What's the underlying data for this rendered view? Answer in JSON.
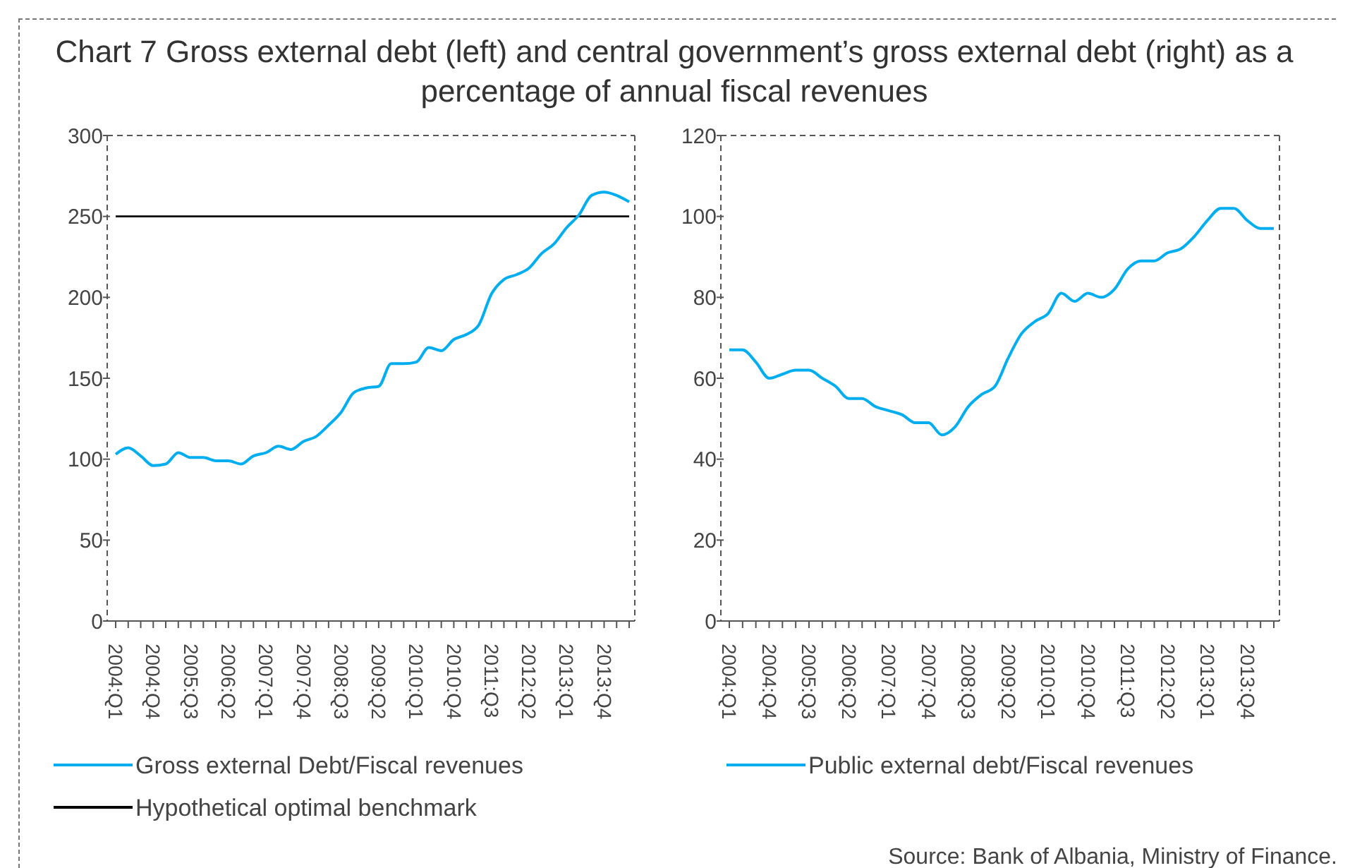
{
  "chart_data": [
    {
      "type": "line",
      "title": "Chart 7 Gross external debt (left) and central government’s gross external debt (right) as a percentage of annual fiscal revenues",
      "categories": [
        "2004:Q1",
        null,
        null,
        "2004:Q4",
        null,
        null,
        "2005:Q3",
        null,
        null,
        "2006:Q2",
        null,
        null,
        "2007:Q1",
        null,
        null,
        "2007:Q4",
        null,
        null,
        "2008:Q3",
        null,
        null,
        "2009:Q2",
        null,
        null,
        "2010:Q1",
        null,
        null,
        "2010:Q4",
        null,
        null,
        "2011:Q3",
        null,
        null,
        "2012:Q2",
        null,
        null,
        "2013:Q1",
        null,
        null,
        "2013:Q4",
        null,
        null
      ],
      "series": [
        {
          "name": "Gross external Debt/Fiscal revenues",
          "color": "#00aeef",
          "values": [
            103,
            107,
            102,
            96,
            97,
            104,
            101,
            101,
            99,
            99,
            97,
            102,
            104,
            108,
            106,
            111,
            114,
            121,
            129,
            141,
            144,
            145,
            159,
            159,
            160,
            169,
            167,
            174,
            177,
            183,
            202,
            211,
            214,
            218,
            227,
            233,
            243,
            251,
            263,
            265,
            263,
            259
          ]
        }
      ],
      "ref_lines": [
        {
          "axis": "y",
          "value": 250,
          "label": "Hypothetical optimal benchmark",
          "color": "#000000"
        }
      ],
      "ylim": [
        0,
        300
      ],
      "yticks": [
        0,
        50,
        100,
        150,
        200,
        250,
        300
      ],
      "grid": false,
      "legend": "bottom"
    },
    {
      "type": "line",
      "categories": [
        "2004:Q1",
        null,
        null,
        "2004:Q4",
        null,
        null,
        "2005:Q3",
        null,
        null,
        "2006:Q2",
        null,
        null,
        "2007:Q1",
        null,
        null,
        "2007:Q4",
        null,
        null,
        "2008:Q3",
        null,
        null,
        "2009:Q2",
        null,
        null,
        "2010:Q1",
        null,
        null,
        "2010:Q4",
        null,
        null,
        "2011:Q3",
        null,
        null,
        "2012:Q2",
        null,
        null,
        "2013:Q1",
        null,
        null,
        "2013:Q4",
        null,
        null
      ],
      "series": [
        {
          "name": "Public external debt/Fiscal revenues",
          "color": "#00aeef",
          "values": [
            67,
            67,
            64,
            60,
            61,
            62,
            62,
            60,
            58,
            55,
            55,
            53,
            52,
            51,
            49,
            49,
            46,
            48,
            53,
            56,
            58,
            65,
            71,
            74,
            76,
            81,
            79,
            81,
            80,
            82,
            87,
            89,
            89,
            91,
            92,
            95,
            99,
            102,
            102,
            99,
            97,
            97
          ]
        }
      ],
      "ylim": [
        0,
        120
      ],
      "yticks": [
        0,
        20,
        40,
        60,
        80,
        100,
        120
      ],
      "grid": false,
      "legend": "bottom",
      "annotations": [
        "Source: Bank of Albania, Ministry of Finance."
      ]
    }
  ]
}
